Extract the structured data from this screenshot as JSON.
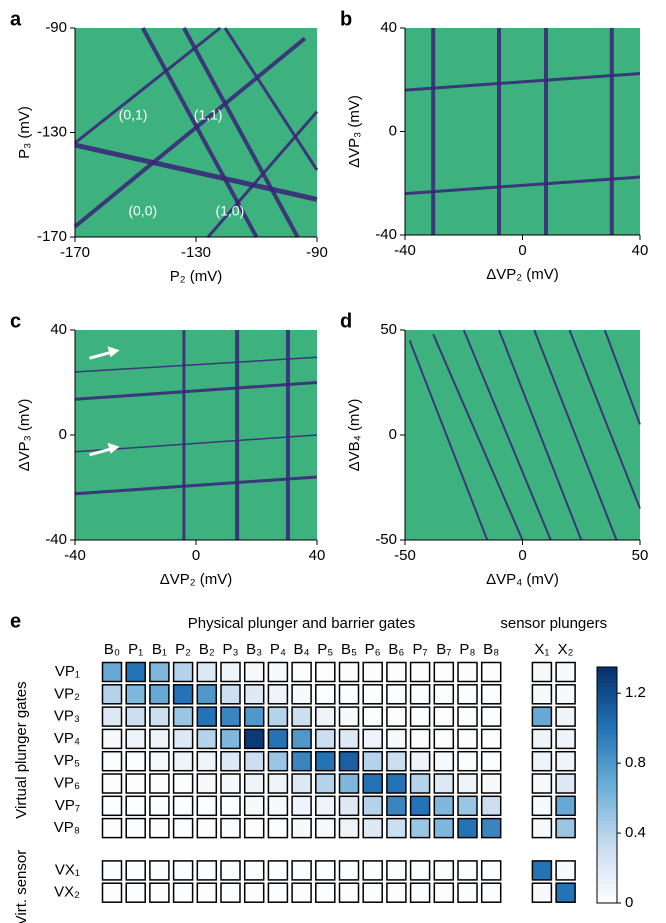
{
  "chart_data": [
    {
      "type": "heatmap",
      "panel": "a",
      "xlabel": "P₂ (mV)",
      "ylabel": "P₃ (mV)",
      "xlim": [
        -170,
        -90
      ],
      "xticks": [
        -170,
        -130,
        -90
      ],
      "ylim": [
        -170,
        -90
      ],
      "yticks": [
        -170,
        -130,
        -90
      ],
      "annotations": [
        "(0,1)",
        "(1,1)",
        "(0,0)",
        "(1,0)"
      ]
    },
    {
      "type": "heatmap",
      "panel": "b",
      "xlabel": "ΔVP₂ (mV)",
      "ylabel": "ΔVP₃ (mV)",
      "xlim": [
        -40,
        40
      ],
      "xticks": [
        -40,
        0,
        40
      ],
      "ylim": [
        -40,
        40
      ],
      "yticks": [
        -40,
        0,
        40
      ]
    },
    {
      "type": "heatmap",
      "panel": "c",
      "xlabel": "ΔVP₂ (mV)",
      "ylabel": "ΔVP₃ (mV)",
      "xlim": [
        -40,
        40
      ],
      "xticks": [
        -40,
        0,
        40
      ],
      "ylim": [
        -40,
        40
      ],
      "yticks": [
        -40,
        0,
        40
      ]
    },
    {
      "type": "heatmap",
      "panel": "d",
      "xlabel": "ΔVP₄ (mV)",
      "ylabel": "ΔVB₄ (mV)",
      "xlim": [
        -50,
        50
      ],
      "xticks": [
        -50,
        0,
        50
      ],
      "ylim": [
        -50,
        50
      ],
      "yticks": [
        -50,
        0,
        50
      ]
    },
    {
      "type": "matrix",
      "panel": "e",
      "column_groups": [
        {
          "label": "Physical plunger and barrier gates",
          "columns": [
            "B₀",
            "P₁",
            "B₁",
            "P₂",
            "B₂",
            "P₃",
            "B₃",
            "P₄",
            "B₄",
            "P₅",
            "B₅",
            "P₆",
            "B₆",
            "P₇",
            "B₇",
            "P₈",
            "B₈"
          ]
        },
        {
          "label": "sensor plungers",
          "columns": [
            "X₁",
            "X₂"
          ]
        }
      ],
      "row_groups": [
        {
          "label": "Virtual plunger gates",
          "rows": [
            "VP₁",
            "VP₂",
            "VP₃",
            "VP₄",
            "VP₅",
            "VP₆",
            "VP₇",
            "VP₈"
          ]
        },
        {
          "label": "Virt. sensor",
          "rows": [
            "VX₁",
            "VX₂"
          ]
        }
      ],
      "values": [
        [
          0.7,
          1.0,
          0.6,
          0.4,
          0.2,
          0.1,
          0.05,
          0.05,
          0.02,
          0.02,
          0.02,
          0.02,
          0.02,
          0.02,
          0.02,
          0.02,
          0.02,
          0.05,
          0.05
        ],
        [
          0.4,
          0.6,
          0.7,
          1.0,
          0.8,
          0.3,
          0.2,
          0.1,
          0.05,
          0.02,
          0.02,
          0.02,
          0.02,
          0.02,
          0.02,
          0.02,
          0.02,
          0.05,
          0.05
        ],
        [
          0.2,
          0.3,
          0.3,
          0.5,
          1.0,
          0.9,
          0.8,
          0.4,
          0.3,
          0.1,
          0.05,
          0.02,
          0.02,
          0.02,
          0.02,
          0.02,
          0.02,
          0.7,
          0.1
        ],
        [
          0.05,
          0.1,
          0.1,
          0.2,
          0.4,
          0.6,
          1.3,
          1.0,
          0.8,
          0.3,
          0.2,
          0.1,
          0.05,
          0.02,
          0.02,
          0.02,
          0.02,
          0.1,
          0.1
        ],
        [
          0.02,
          0.02,
          0.05,
          0.1,
          0.1,
          0.2,
          0.3,
          0.5,
          0.9,
          1.0,
          1.1,
          0.4,
          0.3,
          0.1,
          0.05,
          0.02,
          0.02,
          0.1,
          0.1
        ],
        [
          0.02,
          0.02,
          0.02,
          0.02,
          0.05,
          0.05,
          0.1,
          0.1,
          0.2,
          0.4,
          0.6,
          1.0,
          1.0,
          0.4,
          0.2,
          0.1,
          0.05,
          0.05,
          0.2
        ],
        [
          0.02,
          0.02,
          0.02,
          0.02,
          0.02,
          0.02,
          0.05,
          0.05,
          0.1,
          0.1,
          0.2,
          0.4,
          0.9,
          1.0,
          0.6,
          0.5,
          0.3,
          0.05,
          0.7
        ],
        [
          0.02,
          0.02,
          0.02,
          0.02,
          0.02,
          0.02,
          0.02,
          0.02,
          0.05,
          0.05,
          0.1,
          0.2,
          0.3,
          0.5,
          0.6,
          1.0,
          0.9,
          0.05,
          0.5
        ],
        [
          0.02,
          0.02,
          0.02,
          0.02,
          0.02,
          0.02,
          0.02,
          0.02,
          0.02,
          0.02,
          0.02,
          0.02,
          0.02,
          0.02,
          0.02,
          0.02,
          0.02,
          1.0,
          0.05
        ],
        [
          0.02,
          0.02,
          0.02,
          0.02,
          0.02,
          0.02,
          0.02,
          0.02,
          0.02,
          0.02,
          0.02,
          0.02,
          0.02,
          0.02,
          0.02,
          0.02,
          0.02,
          0.05,
          1.0
        ]
      ],
      "zlim": [
        0,
        1.35
      ],
      "colorbar_ticks": [
        0,
        0.4,
        0.8,
        1.2
      ]
    }
  ]
}
